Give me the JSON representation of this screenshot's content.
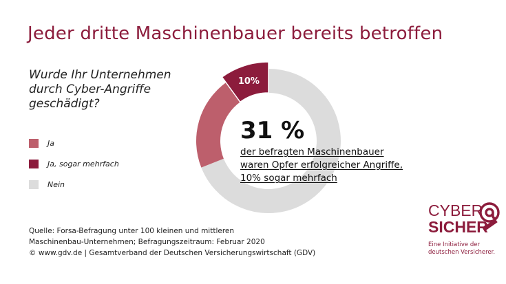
{
  "header": {
    "title": "Jeder dritte Maschinenbauer bereits betroffen"
  },
  "question": {
    "lines": [
      "Wurde Ihr Unternehmen",
      "durch Cyber-Angriffe",
      "geschädigt?"
    ]
  },
  "legend": [
    {
      "label": "Ja",
      "color": "#bd5f6c"
    },
    {
      "label": "Ja, sogar mehrfach",
      "color": "#8c1c3c"
    },
    {
      "label": "Nein",
      "color": "#dcdcdc"
    }
  ],
  "chart_data": {
    "type": "pie",
    "variant": "donut",
    "categories": [
      "Ja",
      "Ja, sogar mehrfach",
      "Nein"
    ],
    "values": [
      21,
      10,
      69
    ],
    "unit": "%",
    "data_labels": [
      {
        "category": "Ja, sogar mehrfach",
        "text": "10%"
      }
    ],
    "highlight": "Ja, sogar mehrfach",
    "legend_position": "left",
    "colors": [
      "#bd5f6c",
      "#8c1c3c",
      "#dcdcdc"
    ]
  },
  "callout": {
    "value": "31 %",
    "lines": [
      "der befragten Maschinenbauer",
      "waren Opfer erfolgreicher Angriffe,",
      "10% sogar mehrfach"
    ]
  },
  "source": {
    "lines": [
      "Quelle: Forsa-Befragung unter 100 kleinen und mittleren",
      "Maschinenbau-Unternehmen; Befragungszeitraum: Februar 2020",
      "© www.gdv.de | Gesamtverband der Deutschen Versicherungswirtschaft (GDV)"
    ]
  },
  "logo": {
    "word1": "CYBER",
    "word2": "SICHER",
    "tagline": [
      "Eine Initiative der",
      "deutschen Versicherer."
    ],
    "color": "#8c1c3c"
  }
}
